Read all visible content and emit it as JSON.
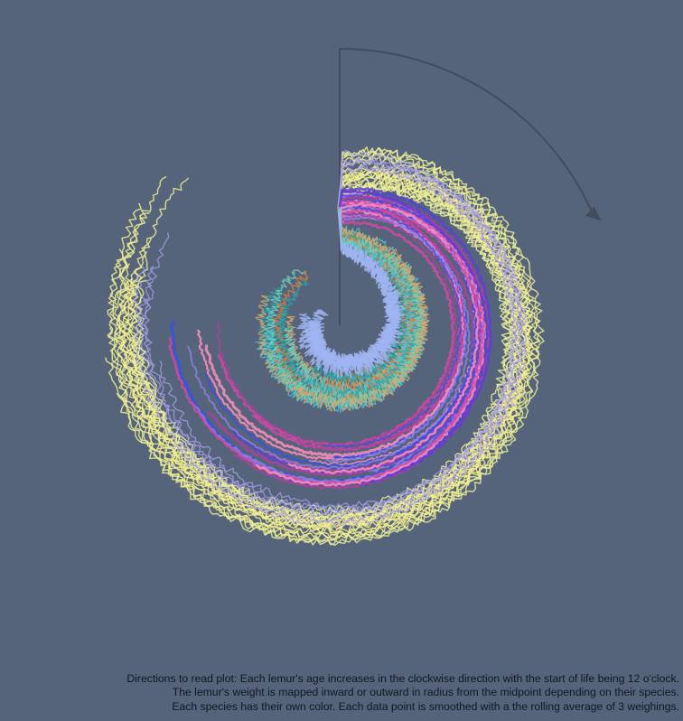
{
  "colors": {
    "background": "#55647a",
    "arrow": "#434c5c",
    "caption_text": "#111722"
  },
  "chart_data": {
    "type": "line",
    "subtype": "radial spiral (angle = age, clockwise from 12 o'clock; radius = weight)",
    "title": "",
    "xlabel": "",
    "ylabel": "",
    "grid": false,
    "legend": "none",
    "direction_arrow": "clockwise from 12 o'clock",
    "species_colors": [
      "#f4ee90",
      "#ecee96",
      "#a89ee6",
      "#8e80e8",
      "#5b3fd8",
      "#3450ee",
      "#ff8fbd",
      "#d14aa3",
      "#b040a0",
      "#4fc4d8",
      "#2aa3a8",
      "#6fd1c0",
      "#d9a86a",
      "#e07a3a",
      "#9fb4f0"
    ],
    "smoothing": "rolling average of 3 weighings"
  },
  "caption": {
    "line1": "Directions to read plot: Each lemur's age increases in the clockwise direction with the start of life being 12 o'clock.",
    "line2": "The lemur's weight is mapped inward or outward in radius from the midpoint depending on their species.",
    "line3": "Each species has their own color. Each data point is smoothed with a the rolling average of 3 weighings."
  }
}
